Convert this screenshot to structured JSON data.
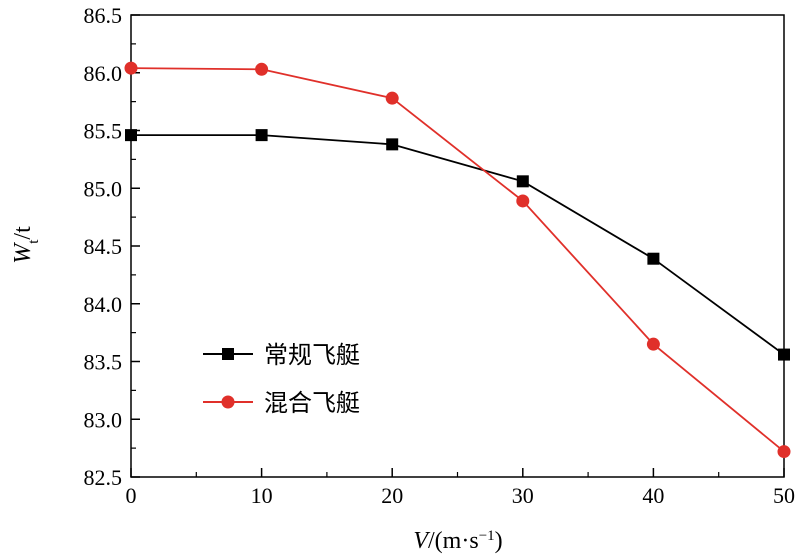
{
  "chart_data": {
    "type": "line",
    "x": [
      0,
      10,
      20,
      30,
      40,
      50
    ],
    "series": [
      {
        "name": "常规飞艇",
        "color": "#000000",
        "marker": "square",
        "values": [
          85.46,
          85.46,
          85.38,
          85.06,
          84.39,
          83.56
        ]
      },
      {
        "name": "混合飞艇",
        "color": "#e0302a",
        "marker": "circle",
        "values": [
          86.04,
          86.03,
          85.78,
          84.89,
          83.65,
          82.72
        ]
      }
    ],
    "xlim": [
      0,
      50
    ],
    "ylim": [
      82.5,
      86.5
    ],
    "xticks": [
      "0",
      "10",
      "20",
      "30",
      "40",
      "50"
    ],
    "yticks": [
      "82.5",
      "83.0",
      "83.5",
      "84.0",
      "84.5",
      "85.0",
      "85.5",
      "86.0",
      "86.5"
    ],
    "xlabel_parts": {
      "var": "V",
      "unit": "/(m·s",
      "sup": "−1",
      "close": ")"
    },
    "ylabel_parts": {
      "var": "W",
      "sub": "t",
      "unit": "/t"
    },
    "grid": false,
    "legend_position": "lower-left"
  }
}
